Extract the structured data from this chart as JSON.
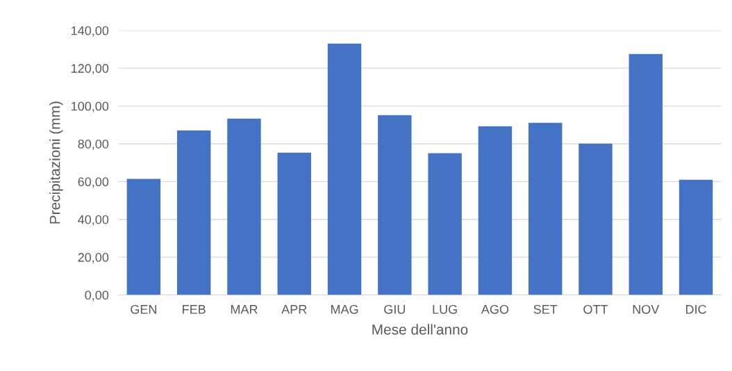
{
  "chart_data": {
    "type": "bar",
    "xlabel": "Mese dell'anno",
    "ylabel": "Precipitazioni (mm)",
    "categories": [
      "GEN",
      "FEB",
      "MAR",
      "APR",
      "MAG",
      "GIU",
      "LUG",
      "AGO",
      "SET",
      "OTT",
      "NOV",
      "DIC"
    ],
    "values": [
      61.4,
      87.1,
      93.3,
      75.3,
      133.0,
      95.2,
      75.0,
      89.3,
      91.1,
      80.1,
      127.5,
      61.0
    ],
    "color": "#4472c4",
    "ylim": [
      0,
      140
    ],
    "yticks": [
      {
        "value": 0,
        "label": "0,00"
      },
      {
        "value": 20,
        "label": "20,00"
      },
      {
        "value": 40,
        "label": "40,00"
      },
      {
        "value": 60,
        "label": "60,00"
      },
      {
        "value": 80,
        "label": "80,00"
      },
      {
        "value": 100,
        "label": "100,00"
      },
      {
        "value": 120,
        "label": "120,00"
      },
      {
        "value": 140,
        "label": "140,00"
      }
    ],
    "grid": "y",
    "legend": false
  }
}
